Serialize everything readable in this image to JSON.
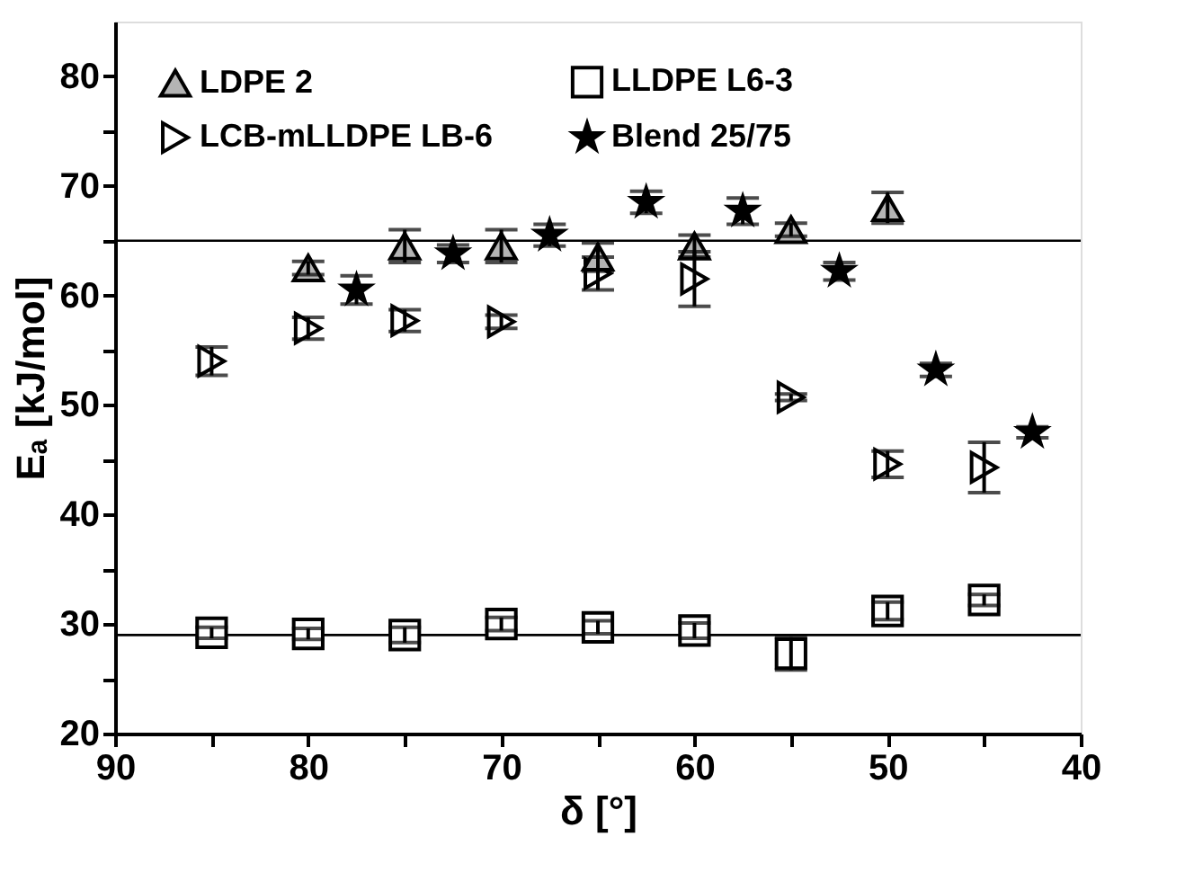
{
  "chart_data": {
    "type": "scatter",
    "xlabel": "δ [°]",
    "ylabel": "Eₐ [kJ/mol]",
    "xlim": [
      90,
      40
    ],
    "ylim": [
      20,
      85
    ],
    "xticks": [
      90,
      {
        "value": 85,
        "label": null
      },
      80,
      {
        "value": 75,
        "label": null
      },
      70,
      {
        "value": 65,
        "label": null
      },
      60,
      {
        "value": 55,
        "label": null
      },
      50,
      {
        "value": 45,
        "label": null
      },
      40
    ],
    "yticks": [
      20,
      {
        "value": 25,
        "label": null
      },
      30,
      {
        "value": 35,
        "label": null
      },
      40,
      {
        "value": 45,
        "label": null
      },
      50,
      {
        "value": 55,
        "label": null
      },
      60,
      {
        "value": 65,
        "label": null
      },
      70,
      {
        "value": 75,
        "label": null
      },
      80
    ],
    "grid": false,
    "legend": "top left",
    "series": [
      {
        "name": "LDPE 2",
        "color": "#b4b4b4",
        "marker": "triangle",
        "x": [
          80,
          75,
          70,
          65,
          60,
          55,
          50
        ],
        "values": [
          62.5,
          64.5,
          64.5,
          63.5,
          64.5,
          66,
          68
        ],
        "errors": [
          0.6,
          1.5,
          1.5,
          1.3,
          1.0,
          0.6,
          1.4
        ]
      },
      {
        "name": "LCB-mLLDPE LB-6",
        "color": "#ffffff",
        "marker": "triangle-right",
        "x": [
          85,
          80,
          75,
          70,
          65,
          60,
          55,
          50,
          45
        ],
        "values": [
          54,
          57,
          57.7,
          57.6,
          62,
          61.5,
          50.7,
          44.6,
          44.3
        ],
        "errors": [
          1.3,
          1.0,
          1.0,
          0.6,
          1.5,
          2.5,
          0.3,
          1.2,
          2.3
        ]
      },
      {
        "name": "LLDPE L6-3",
        "color": "#ffffff",
        "marker": "square",
        "x": [
          85,
          80,
          75,
          70,
          65,
          60,
          55,
          50,
          45
        ],
        "values": [
          29.2,
          29.1,
          29,
          30,
          29.7,
          29.4,
          27.3,
          31.2,
          32.2
        ],
        "errors": [
          0.5,
          0.5,
          0.7,
          0.6,
          0.6,
          0.7,
          1.5,
          0.8,
          0.5
        ]
      },
      {
        "name": "Blend 25/75",
        "color": "#000000",
        "marker": "star",
        "x": [
          77.5,
          72.5,
          67.5,
          62.5,
          57.5,
          52.5,
          47.5,
          42.5
        ],
        "values": [
          60.5,
          63.8,
          65.5,
          68.5,
          67.7,
          62.2,
          53.2,
          47.5
        ],
        "errors": [
          1.3,
          0.8,
          1.0,
          1.0,
          1.2,
          0.8,
          0.6,
          0.5
        ]
      }
    ],
    "ref_lines": [
      {
        "axis": "y",
        "value": 65,
        "color": "#000000"
      },
      {
        "axis": "y",
        "value": 29,
        "color": "#000000"
      }
    ]
  }
}
